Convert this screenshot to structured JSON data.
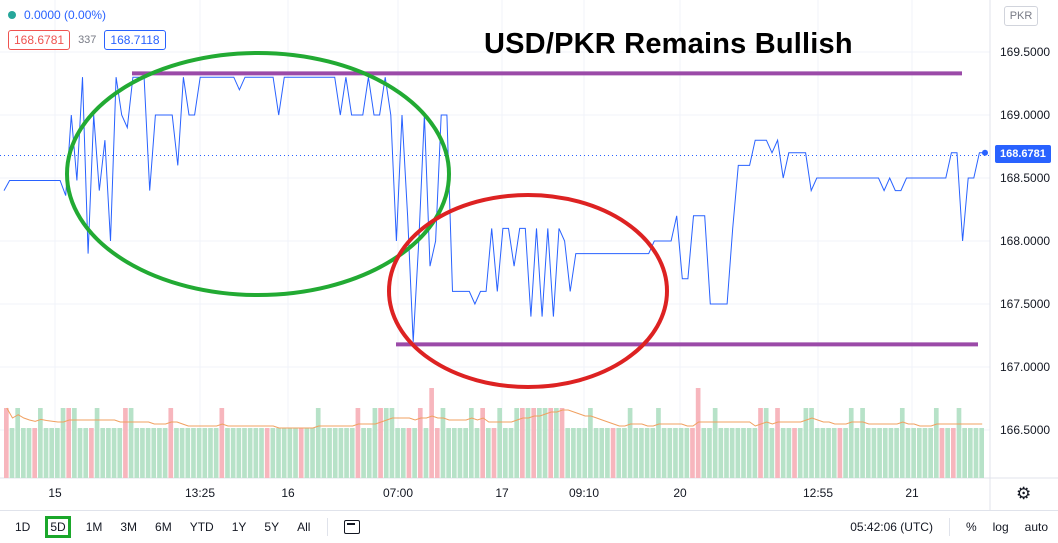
{
  "legend": {
    "change": "0.0000 (0.00%)",
    "bid": "168.6781",
    "spread": "337",
    "ask": "168.7118"
  },
  "currency": "PKR",
  "last_price": "168.6781",
  "toolbar": {
    "timeframes": [
      "1D",
      "5D",
      "1M",
      "3M",
      "6M",
      "YTD",
      "1Y",
      "5Y",
      "All"
    ],
    "active_timeframe": "5D",
    "time": "05:42:06 (UTC)",
    "percent": "%",
    "log": "log",
    "auto": "auto"
  },
  "colors": {
    "line": "#2962ff",
    "vol_up": "#b7e2c8",
    "vol_down": "#f7b6bd",
    "ma": "#f0a060",
    "annotation_green": "#22aa33",
    "annotation_red": "#dd2222",
    "annotation_purple": "#9b4aa8"
  },
  "chart_data": {
    "type": "line",
    "title": "USD/PKR Remains Bullish",
    "x_ticks": [
      "15",
      "13:25",
      "16",
      "07:00",
      "17",
      "09:10",
      "20",
      "12:55",
      "21"
    ],
    "y_ticks": [
      169.5,
      169.0,
      168.5,
      168.0,
      167.5,
      167.0,
      166.5
    ],
    "ylim": [
      166.25,
      169.75
    ],
    "resistance": 169.33,
    "support": 167.18,
    "series": [
      {
        "values": [
          168.4,
          168.48,
          168.48,
          168.48,
          168.48,
          168.48,
          168.48,
          168.48,
          168.48,
          168.48,
          168.48,
          168.36,
          169.0,
          168.48,
          169.3,
          167.9,
          169.0,
          168.4,
          168.8,
          168.0,
          169.3,
          169.0,
          168.9,
          169.3,
          169.3,
          169.3,
          168.4,
          169.0,
          169.0,
          169.0,
          169.0,
          168.6,
          169.3,
          169.0,
          169.0,
          169.3,
          169.3,
          169.3,
          169.3,
          169.3,
          169.3,
          169.3,
          169.2,
          169.3,
          169.3,
          169.3,
          169.3,
          169.3,
          169.3,
          169.0,
          169.3,
          169.3,
          169.3,
          169.3,
          169.3,
          169.3,
          169.3,
          169.3,
          169.3,
          169.3,
          169.0,
          169.3,
          169.0,
          169.0,
          169.0,
          169.3,
          169.0,
          169.0,
          169.3,
          169.0,
          168.0,
          169.0,
          168.2,
          167.2,
          168.0,
          169.0,
          167.8,
          168.0,
          169.0,
          169.0,
          167.6,
          167.6,
          167.6,
          167.6,
          167.5,
          167.6,
          167.6,
          168.1,
          167.6,
          168.1,
          168.1,
          167.8,
          168.1,
          168.1,
          167.4,
          168.1,
          167.4,
          168.1,
          167.4,
          168.1,
          168.0,
          167.6,
          167.9,
          167.9,
          167.9,
          167.9,
          167.9,
          167.9,
          167.9,
          167.9,
          167.9,
          167.9,
          167.9,
          167.9,
          167.9,
          167.9,
          168.0,
          168.0,
          168.0,
          168.0,
          168.2,
          167.7,
          167.7,
          168.2,
          168.2,
          168.2,
          167.5,
          167.5,
          167.5,
          167.5,
          168.1,
          168.6,
          168.6,
          168.6,
          168.8,
          168.8,
          168.8,
          168.7,
          168.8,
          168.5,
          168.7,
          168.7,
          168.7,
          168.7,
          168.4,
          168.5,
          168.5,
          168.5,
          168.5,
          168.5,
          168.5,
          168.5,
          168.5,
          168.5,
          168.5,
          168.5,
          168.5,
          168.4,
          168.5,
          168.4,
          168.4,
          168.5,
          168.5,
          168.5,
          168.5,
          168.5,
          168.5,
          168.5,
          168.5,
          168.7,
          168.7,
          168.0,
          168.5,
          168.5,
          168.7,
          168.7
        ]
      }
    ],
    "volume": {
      "values": [
        7,
        5,
        7,
        5,
        5,
        5,
        7,
        5,
        5,
        5,
        7,
        7,
        7,
        5,
        5,
        5,
        7,
        5,
        5,
        5,
        5,
        7,
        7,
        5,
        5,
        5,
        5,
        5,
        5,
        7,
        5,
        5,
        5,
        5,
        5,
        5,
        5,
        5,
        7,
        5,
        5,
        5,
        5,
        5,
        5,
        5,
        5,
        5,
        5,
        5,
        5,
        5,
        5,
        5,
        5,
        7,
        5,
        5,
        5,
        5,
        5,
        5,
        7,
        5,
        5,
        7,
        7,
        7,
        7,
        5,
        5,
        5,
        5,
        7,
        5,
        9,
        5,
        7,
        5,
        5,
        5,
        5,
        7,
        5,
        7,
        5,
        5,
        7,
        5,
        5,
        7,
        7,
        7,
        7,
        7,
        7,
        7,
        7,
        7,
        5,
        5,
        5,
        5,
        7,
        5,
        5,
        5,
        5,
        5,
        5,
        7,
        5,
        5,
        5,
        5,
        7,
        5,
        5,
        5,
        5,
        5,
        5,
        9,
        5,
        5,
        7,
        5,
        5,
        5,
        5,
        5,
        5,
        5,
        7,
        7,
        5,
        7,
        5,
        5,
        5,
        5,
        7,
        7,
        5,
        5,
        5,
        5,
        5,
        5,
        7,
        5,
        7,
        5,
        5,
        5,
        5,
        5,
        5,
        7,
        5,
        5,
        5,
        5,
        5,
        7,
        5,
        5,
        5,
        7,
        5,
        5,
        5,
        5
      ],
      "down": [
        0,
        5,
        11,
        15,
        21,
        29,
        38,
        46,
        52,
        62,
        66,
        71,
        73,
        75,
        76,
        84,
        86,
        91,
        93,
        96,
        98,
        107,
        121,
        122,
        133,
        136,
        139,
        147,
        165,
        167
      ]
    }
  }
}
